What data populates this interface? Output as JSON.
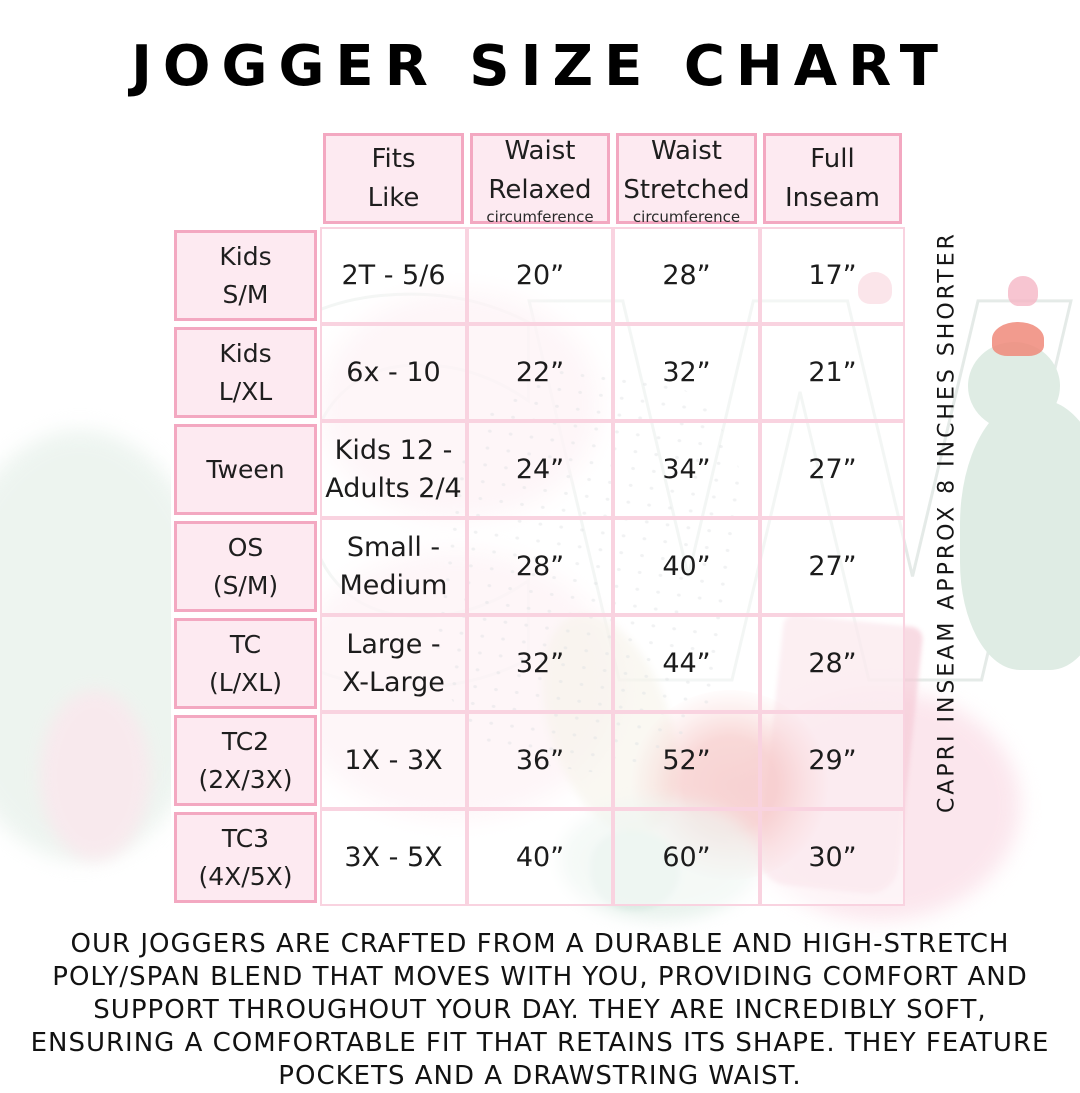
{
  "page": {
    "title": "JOGGER SIZE CHART",
    "side_note": "CAPRI INSEAM APPROX 8 INCHES SHORTER",
    "description": "OUR JOGGERS ARE CRAFTED FROM A DURABLE AND HIGH-STRETCH POLY/SPAN BLEND THAT MOVES WITH YOU, PROVIDING COMFORT AND SUPPORT THROUGHOUT YOUR DAY. THEY ARE INCREDIBLY SOFT, ENSURING A COMFORTABLE FIT THAT RETAINS ITS SHAPE. THEY FEATURE POCKETS AND A DRAWSTRING WAIST.",
    "watermark_text": "CW"
  },
  "colors": {
    "cell_pink_fill": "#fdeaf1",
    "strong_pink_border": "#f3a8c1",
    "light_pink_border": "#f9d3e0",
    "text": "#1e1e1e",
    "mint_accent": "#dfece4",
    "coral_accent": "#f0897a",
    "red_flower": "#e25d5d"
  },
  "chart_data": {
    "type": "table",
    "title": "JOGGER SIZE CHART",
    "columns": [
      {
        "label": "",
        "sub": ""
      },
      {
        "label": "Fits\nLike",
        "sub": ""
      },
      {
        "label": "Waist\nRelaxed",
        "sub": "circumference"
      },
      {
        "label": "Waist\nStretched",
        "sub": "circumference"
      },
      {
        "label": "Full\nInseam",
        "sub": ""
      }
    ],
    "rows": [
      {
        "size": "Kids\nS/M",
        "cells": [
          "2T - 5/6",
          "20”",
          "28”",
          "17”"
        ]
      },
      {
        "size": "Kids\nL/XL",
        "cells": [
          "6x - 10",
          "22”",
          "32”",
          "21”"
        ]
      },
      {
        "size": "Tween",
        "cells": [
          "Kids 12 -\nAdults 2/4",
          "24”",
          "34”",
          "27”"
        ]
      },
      {
        "size": "OS\n(S/M)",
        "cells": [
          "Small -\nMedium",
          "28”",
          "40”",
          "27”"
        ]
      },
      {
        "size": "TC\n(L/XL)",
        "cells": [
          "Large -\nX-Large",
          "32”",
          "44”",
          "28”"
        ]
      },
      {
        "size": "TC2\n(2X/3X)",
        "cells": [
          "1X - 3X",
          "36”",
          "52”",
          "29”"
        ]
      },
      {
        "size": "TC3\n(4X/5X)",
        "cells": [
          "3X - 5X",
          "40”",
          "60”",
          "30”"
        ]
      }
    ],
    "notes": {
      "side_note": "CAPRI INSEAM APPROX 8 INCHES SHORTER",
      "footer": "OUR JOGGERS ARE CRAFTED FROM A DURABLE AND HIGH-STRETCH POLY/SPAN BLEND THAT MOVES WITH YOU, PROVIDING COMFORT AND SUPPORT THROUGHOUT YOUR DAY. THEY ARE INCREDIBLY SOFT, ENSURING A COMFORTABLE FIT THAT RETAINS ITS SHAPE. THEY FEATURE POCKETS AND A DRAWSTRING WAIST."
    }
  }
}
